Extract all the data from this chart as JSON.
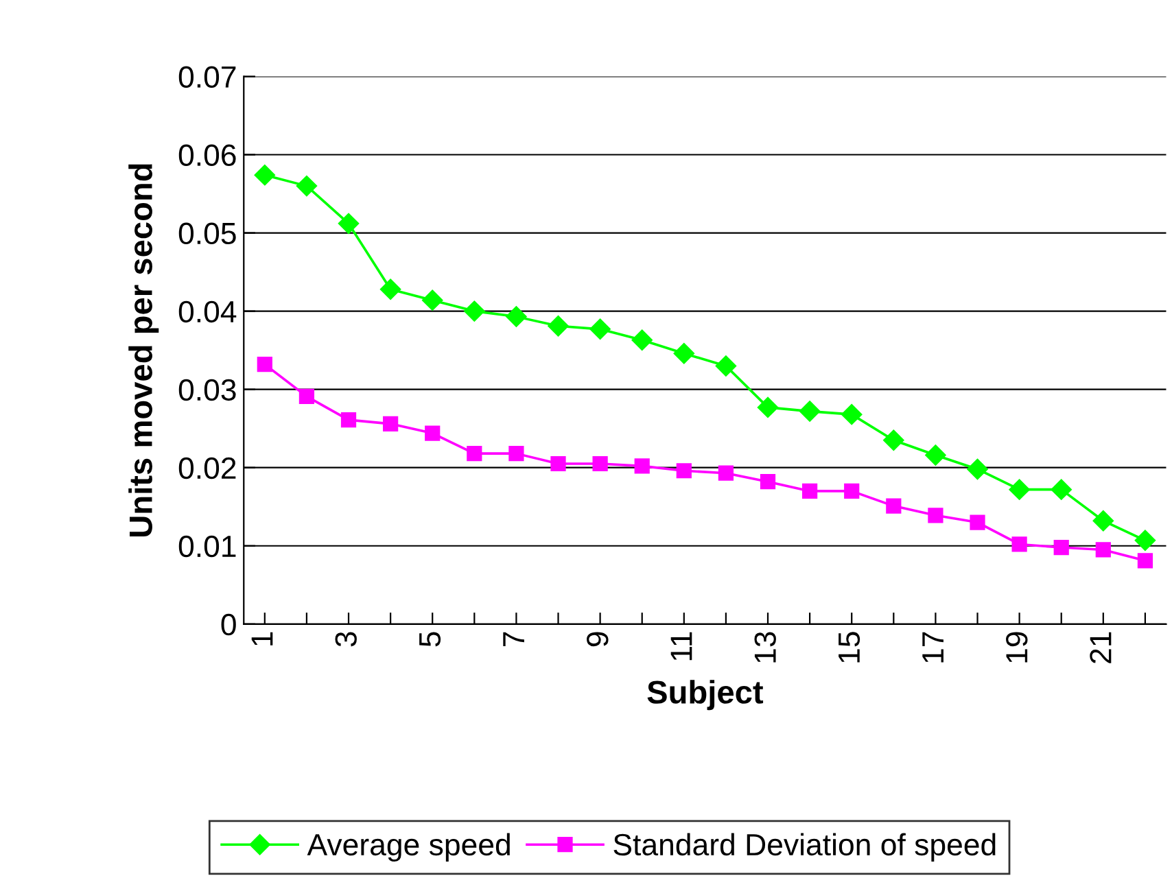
{
  "chart_data": {
    "type": "line",
    "xlabel": "Subject",
    "ylabel": "Units moved per second",
    "categories": [
      "1",
      null,
      "3",
      null,
      "5",
      null,
      "7",
      null,
      "9",
      null,
      "11",
      null,
      "13",
      null,
      "15",
      null,
      "17",
      null,
      "19",
      null,
      "21",
      null
    ],
    "series": [
      {
        "name": "Average speed",
        "color": "#00ff00",
        "marker": "diamond",
        "values": [
          0.0574,
          0.056,
          0.0512,
          0.0428,
          0.0414,
          0.04,
          0.0393,
          0.0381,
          0.0377,
          0.0363,
          0.0346,
          0.033,
          0.0277,
          0.0272,
          0.0268,
          0.0235,
          0.0216,
          0.0198,
          0.0172,
          0.0172,
          0.0132,
          0.0107
        ]
      },
      {
        "name": "Standard Deviation of speed",
        "color": "#ff00ff",
        "marker": "square",
        "values": [
          0.0332,
          0.0291,
          0.0261,
          0.0256,
          0.0244,
          0.0218,
          0.0218,
          0.0205,
          0.0205,
          0.0202,
          0.0196,
          0.0193,
          0.0182,
          0.017,
          0.017,
          0.0151,
          0.0139,
          0.013,
          0.0102,
          0.0098,
          0.0095,
          0.0081
        ]
      }
    ],
    "ylim": [
      0,
      0.07
    ],
    "yticks": [
      {
        "value": 0,
        "label": "0"
      },
      0.01,
      0.02,
      0.03,
      0.04,
      0.05,
      0.06,
      0.07
    ],
    "grid": "y",
    "legend": "bottom",
    "line_style": "solid"
  }
}
